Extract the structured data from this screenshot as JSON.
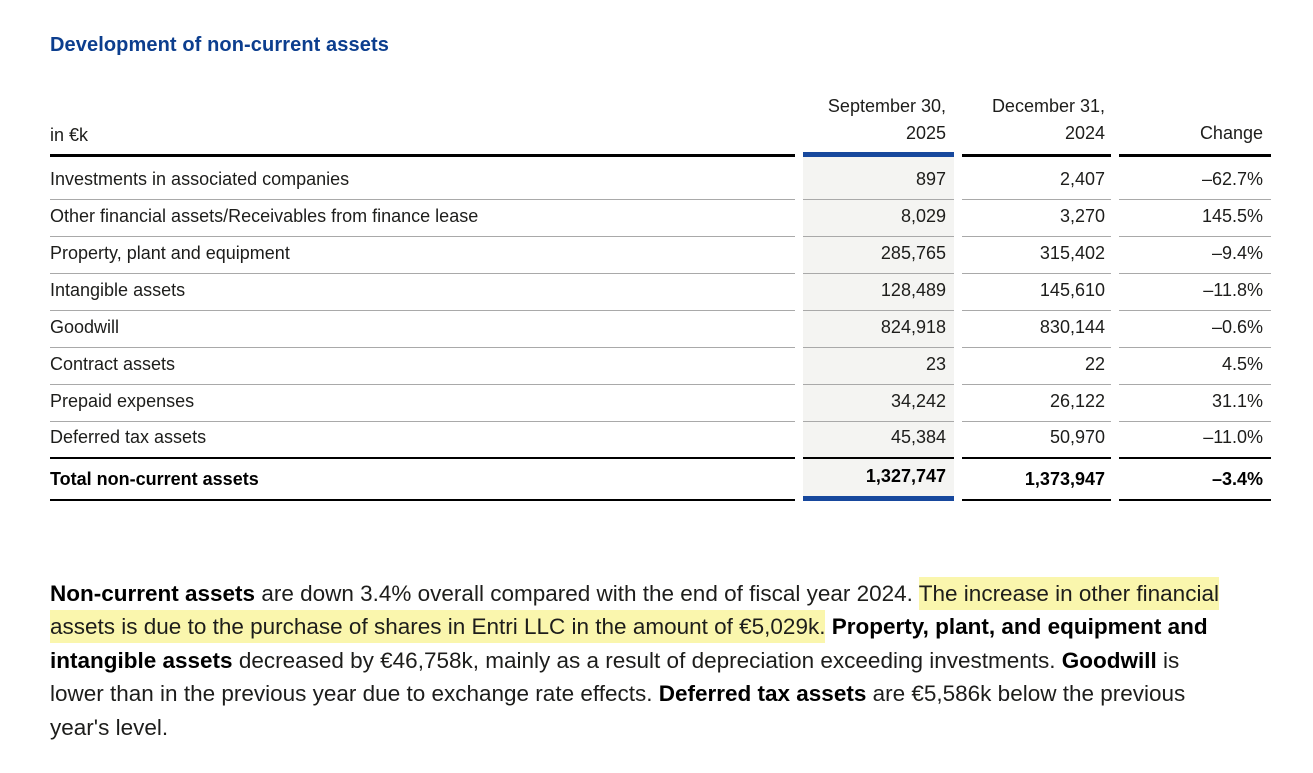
{
  "title": "Development of non-current assets",
  "table": {
    "unit_label": "in €k",
    "col_headers": [
      {
        "line1": "September 30,",
        "line2": "2025"
      },
      {
        "line1": "December 31,",
        "line2": "2024"
      },
      {
        "line1": "",
        "line2": "Change"
      }
    ],
    "rows": [
      {
        "label": "Investments in associated companies",
        "sep_2025": "897",
        "dec_2024": "2,407",
        "change": "–62.7%"
      },
      {
        "label": "Other financial assets/Receivables from finance lease",
        "sep_2025": "8,029",
        "dec_2024": "3,270",
        "change": "145.5%"
      },
      {
        "label": "Property, plant and equipment",
        "sep_2025": "285,765",
        "dec_2024": "315,402",
        "change": "–9.4%"
      },
      {
        "label": "Intangible assets",
        "sep_2025": "128,489",
        "dec_2024": "145,610",
        "change": "–11.8%"
      },
      {
        "label": "Goodwill",
        "sep_2025": "824,918",
        "dec_2024": "830,144",
        "change": "–0.6%"
      },
      {
        "label": "Contract assets",
        "sep_2025": "23",
        "dec_2024": "22",
        "change": "4.5%"
      },
      {
        "label": "Prepaid expenses",
        "sep_2025": "34,242",
        "dec_2024": "26,122",
        "change": "31.1%"
      },
      {
        "label": "Deferred tax assets",
        "sep_2025": "45,384",
        "dec_2024": "50,970",
        "change": "–11.0%"
      }
    ],
    "total_row": {
      "label": "Total non-current assets",
      "sep_2025": "1,327,747",
      "dec_2024": "1,373,947",
      "change": "–3.4%"
    }
  },
  "paragraph": {
    "segments": [
      {
        "text": "Non-current assets",
        "bold": true
      },
      {
        "text": " are down 3.4% overall compared with the end of fiscal year 2024. "
      },
      {
        "text": "The increase in other financial assets is due to the purchase of shares in Entri LLC in the amount of €5,029k.",
        "highlight": true
      },
      {
        "text": " "
      },
      {
        "text": "Property, plant, and equipment and intangible assets",
        "bold": true
      },
      {
        "text": " decreased by €46,758k, mainly as a result of depreciation exceeding investments. "
      },
      {
        "text": "Goodwill",
        "bold": true
      },
      {
        "text": " is lower than in the previous year due to exchange rate effects. "
      },
      {
        "text": "Deferred tax assets",
        "bold": true
      },
      {
        "text": " are €5,586k below the previous year's level."
      }
    ]
  },
  "colors": {
    "title_blue": "#0c3e8e",
    "accent_blue": "#17489d",
    "highlight_yellow": "#faf6ad",
    "column_shade": "#f4f4f2"
  }
}
